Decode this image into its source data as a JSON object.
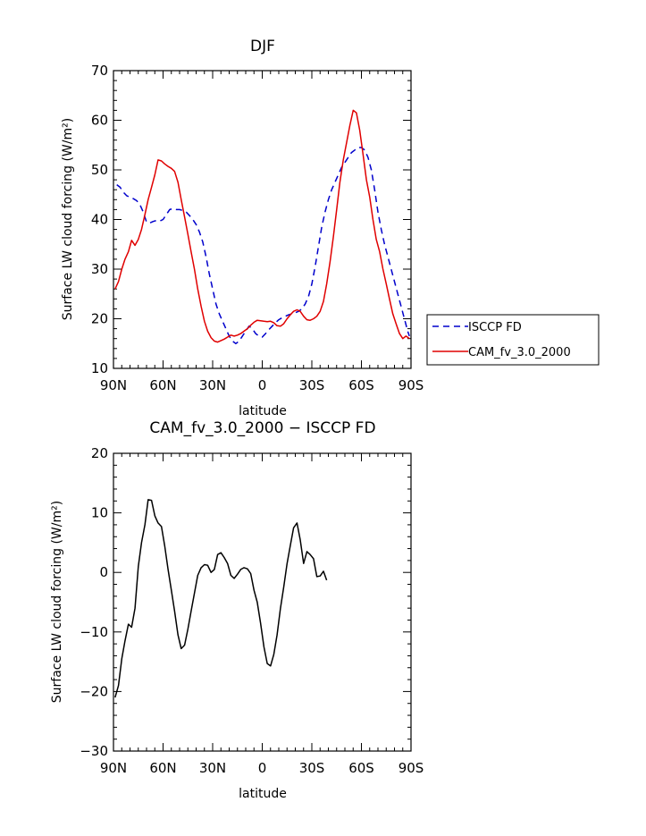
{
  "chart_data": [
    {
      "type": "line",
      "title": "DJF",
      "xlabel": "latitude",
      "ylabel": "Surface LW cloud forcing (W/m²)",
      "xlim": [
        -90,
        90
      ],
      "ylim": [
        10,
        70
      ],
      "x_ticks": [
        -90,
        -60,
        -30,
        0,
        30,
        60,
        90
      ],
      "x_tick_labels": [
        "90N",
        "60N",
        "30N",
        "0",
        "30S",
        "60S",
        "90S"
      ],
      "y_ticks": [
        10,
        20,
        30,
        40,
        50,
        60,
        70
      ],
      "y_tick_labels": [
        "10",
        "20",
        "30",
        "40",
        "50",
        "60",
        "70"
      ],
      "legend_placement": "right",
      "series": [
        {
          "name": "ISCCP FD",
          "color": "#0000cc",
          "dash": "dashed",
          "points": [
            [
              -88,
              47
            ],
            [
              -86,
              46.5
            ],
            [
              -84,
              45.5
            ],
            [
              -82,
              44.8
            ],
            [
              -80,
              44.5
            ],
            [
              -78,
              44.2
            ],
            [
              -76,
              43.8
            ],
            [
              -74,
              43
            ],
            [
              -72,
              41.5
            ],
            [
              -70,
              39.5
            ],
            [
              -68,
              39.3
            ],
            [
              -66,
              39.6
            ],
            [
              -64,
              39.8
            ],
            [
              -62,
              39.7
            ],
            [
              -60,
              40
            ],
            [
              -58,
              41
            ],
            [
              -56,
              42
            ],
            [
              -54,
              42.2
            ],
            [
              -52,
              42
            ],
            [
              -50,
              42
            ],
            [
              -48,
              41.8
            ],
            [
              -46,
              41.5
            ],
            [
              -44,
              40.8
            ],
            [
              -42,
              40
            ],
            [
              -40,
              39
            ],
            [
              -38,
              37.5
            ],
            [
              -36,
              35.5
            ],
            [
              -34,
              32.5
            ],
            [
              -32,
              29
            ],
            [
              -30,
              26
            ],
            [
              -28,
              23
            ],
            [
              -26,
              21
            ],
            [
              -24,
              19.5
            ],
            [
              -22,
              18
            ],
            [
              -20,
              16.5
            ],
            [
              -18,
              15.5
            ],
            [
              -16,
              15
            ],
            [
              -14,
              15.5
            ],
            [
              -12,
              16.5
            ],
            [
              -10,
              17.5
            ],
            [
              -8,
              18.5
            ],
            [
              -6,
              18
            ],
            [
              -4,
              17
            ],
            [
              -2,
              16.5
            ],
            [
              0,
              16.3
            ],
            [
              2,
              17
            ],
            [
              4,
              17.8
            ],
            [
              6,
              18.5
            ],
            [
              8,
              19.2
            ],
            [
              10,
              19.8
            ],
            [
              12,
              20.2
            ],
            [
              14,
              20.5
            ],
            [
              16,
              20.8
            ],
            [
              18,
              21
            ],
            [
              20,
              21.2
            ],
            [
              22,
              21.5
            ],
            [
              24,
              22
            ],
            [
              26,
              23
            ],
            [
              28,
              24.5
            ],
            [
              30,
              27
            ],
            [
              32,
              30.5
            ],
            [
              34,
              34.5
            ],
            [
              36,
              38.5
            ],
            [
              38,
              41.5
            ],
            [
              40,
              44
            ],
            [
              42,
              46
            ],
            [
              44,
              47.5
            ],
            [
              46,
              49
            ],
            [
              48,
              50.5
            ],
            [
              50,
              51.5
            ],
            [
              52,
              52.5
            ],
            [
              54,
              53.5
            ],
            [
              56,
              54
            ],
            [
              58,
              54.5
            ],
            [
              60,
              54.5
            ],
            [
              62,
              54
            ],
            [
              64,
              52.5
            ],
            [
              66,
              50
            ],
            [
              68,
              46
            ],
            [
              70,
              41.5
            ],
            [
              72,
              38
            ],
            [
              74,
              35
            ],
            [
              76,
              32.5
            ],
            [
              78,
              30
            ],
            [
              80,
              27.5
            ],
            [
              82,
              25
            ],
            [
              84,
              22.5
            ],
            [
              86,
              20
            ],
            [
              88,
              17.5
            ],
            [
              89,
              16.5
            ]
          ]
        },
        {
          "name": "CAM_fv_3.0_2000",
          "color": "#e00000",
          "dash": "solid",
          "points": [
            [
              -89,
              26
            ],
            [
              -87,
              27.5
            ],
            [
              -85,
              30
            ],
            [
              -83,
              32
            ],
            [
              -81,
              33.5
            ],
            [
              -79,
              35.8
            ],
            [
              -77,
              34.8
            ],
            [
              -75,
              36
            ],
            [
              -73,
              38
            ],
            [
              -71,
              41
            ],
            [
              -69,
              44
            ],
            [
              -67,
              46.5
            ],
            [
              -65,
              49
            ],
            [
              -63,
              52
            ],
            [
              -61,
              51.8
            ],
            [
              -59,
              51.2
            ],
            [
              -57,
              50.7
            ],
            [
              -55,
              50.3
            ],
            [
              -53,
              49.7
            ],
            [
              -51,
              47.5
            ],
            [
              -49,
              44
            ],
            [
              -47,
              40.5
            ],
            [
              -45,
              37
            ],
            [
              -43,
              33.5
            ],
            [
              -41,
              30
            ],
            [
              -39,
              26
            ],
            [
              -37,
              22.5
            ],
            [
              -35,
              19.5
            ],
            [
              -33,
              17.5
            ],
            [
              -31,
              16.2
            ],
            [
              -29,
              15.5
            ],
            [
              -27,
              15.3
            ],
            [
              -25,
              15.6
            ],
            [
              -23,
              15.9
            ],
            [
              -21,
              16.3
            ],
            [
              -19,
              16.7
            ],
            [
              -17,
              16.5
            ],
            [
              -15,
              16.7
            ],
            [
              -13,
              17
            ],
            [
              -11,
              17.5
            ],
            [
              -9,
              18
            ],
            [
              -7,
              18.7
            ],
            [
              -5,
              19.3
            ],
            [
              -3,
              19.7
            ],
            [
              -1,
              19.6
            ],
            [
              1,
              19.5
            ],
            [
              3,
              19.4
            ],
            [
              5,
              19.5
            ],
            [
              7,
              19.2
            ],
            [
              9,
              18.6
            ],
            [
              11,
              18.5
            ],
            [
              13,
              19
            ],
            [
              15,
              20
            ],
            [
              17,
              20.8
            ],
            [
              19,
              21.5
            ],
            [
              21,
              21.8
            ],
            [
              23,
              21.5
            ],
            [
              25,
              20.5
            ],
            [
              27,
              19.8
            ],
            [
              29,
              19.7
            ],
            [
              31,
              20
            ],
            [
              33,
              20.5
            ],
            [
              35,
              21.5
            ],
            [
              37,
              23.5
            ],
            [
              39,
              27
            ],
            [
              41,
              31.5
            ],
            [
              43,
              36.5
            ],
            [
              45,
              42
            ],
            [
              47,
              47.5
            ],
            [
              49,
              52
            ],
            [
              51,
              55.5
            ],
            [
              53,
              59
            ],
            [
              55,
              62
            ],
            [
              57,
              61.5
            ],
            [
              59,
              58
            ],
            [
              61,
              53
            ],
            [
              63,
              48
            ],
            [
              65,
              44.5
            ],
            [
              67,
              40
            ],
            [
              69,
              36
            ],
            [
              71,
              33.5
            ],
            [
              73,
              30
            ],
            [
              75,
              27
            ],
            [
              77,
              24
            ],
            [
              79,
              21
            ],
            [
              81,
              19
            ],
            [
              83,
              17
            ],
            [
              85,
              16
            ],
            [
              87,
              16.5
            ],
            [
              89,
              16
            ]
          ]
        }
      ]
    },
    {
      "type": "line",
      "title": "CAM_fv_3.0_2000 − ISCCP FD",
      "xlabel": "latitude",
      "ylabel": "Surface LW cloud forcing (W/m²)",
      "xlim": [
        -90,
        90
      ],
      "ylim": [
        -30,
        20
      ],
      "x_ticks": [
        -90,
        -60,
        -30,
        0,
        30,
        60,
        90
      ],
      "x_tick_labels": [
        "90N",
        "60N",
        "30N",
        "0",
        "30S",
        "60S",
        "90S"
      ],
      "y_ticks": [
        -30,
        -20,
        -10,
        0,
        10,
        20
      ],
      "y_tick_labels": [
        "−30",
        "−20",
        "−10",
        "0",
        "10",
        "20"
      ],
      "series": [
        {
          "name": "",
          "color": "#000000",
          "dash": "solid",
          "points": [
            [
              -89,
              -21
            ],
            [
              -87,
              -19
            ],
            [
              -85,
              -14.5
            ],
            [
              -83,
              -11.5
            ],
            [
              -81,
              -8.7
            ],
            [
              -79,
              -9.2
            ],
            [
              -77,
              -6
            ],
            [
              -75,
              1
            ],
            [
              -73,
              5
            ],
            [
              -71,
              8
            ],
            [
              -69,
              12.2
            ],
            [
              -67,
              12.1
            ],
            [
              -65,
              9.5
            ],
            [
              -63,
              8.3
            ],
            [
              -61,
              7.7
            ],
            [
              -59,
              4.5
            ],
            [
              -57,
              0.5
            ],
            [
              -55,
              -3
            ],
            [
              -53,
              -6.5
            ],
            [
              -51,
              -10.5
            ],
            [
              -49,
              -12.8
            ],
            [
              -47,
              -12.2
            ],
            [
              -45,
              -9.5
            ],
            [
              -43,
              -6.5
            ],
            [
              -41,
              -3.5
            ],
            [
              -39,
              -0.5
            ],
            [
              -37,
              0.8
            ],
            [
              -35,
              1.3
            ],
            [
              -33,
              1.2
            ],
            [
              -31,
              0
            ],
            [
              -29,
              0.5
            ],
            [
              -27,
              3
            ],
            [
              -25,
              3.3
            ],
            [
              -23,
              2.5
            ],
            [
              -21,
              1.5
            ],
            [
              -19,
              -0.5
            ],
            [
              -17,
              -1
            ],
            [
              -15,
              -0.3
            ],
            [
              -13,
              0.5
            ],
            [
              -11,
              0.8
            ],
            [
              -9,
              0.6
            ],
            [
              -7,
              -0.2
            ],
            [
              -5,
              -3
            ],
            [
              -3,
              -5
            ],
            [
              -1,
              -8.5
            ],
            [
              1,
              -12.5
            ],
            [
              3,
              -15.3
            ],
            [
              5,
              -15.7
            ],
            [
              7,
              -13.8
            ],
            [
              9,
              -10.5
            ],
            [
              11,
              -6
            ],
            [
              13,
              -2.5
            ],
            [
              15,
              1.5
            ],
            [
              17,
              4.5
            ],
            [
              19,
              7.5
            ],
            [
              21,
              8.3
            ],
            [
              23,
              5.5
            ],
            [
              25,
              1.5
            ],
            [
              27,
              3.5
            ],
            [
              29,
              3
            ],
            [
              31,
              2.3
            ],
            [
              33,
              -0.7
            ],
            [
              35,
              -0.6
            ],
            [
              37,
              0.2
            ],
            [
              39,
              -1.3
            ]
          ]
        }
      ]
    }
  ],
  "legend": {
    "items": [
      "ISCCP FD",
      "CAM_fv_3.0_2000"
    ]
  }
}
